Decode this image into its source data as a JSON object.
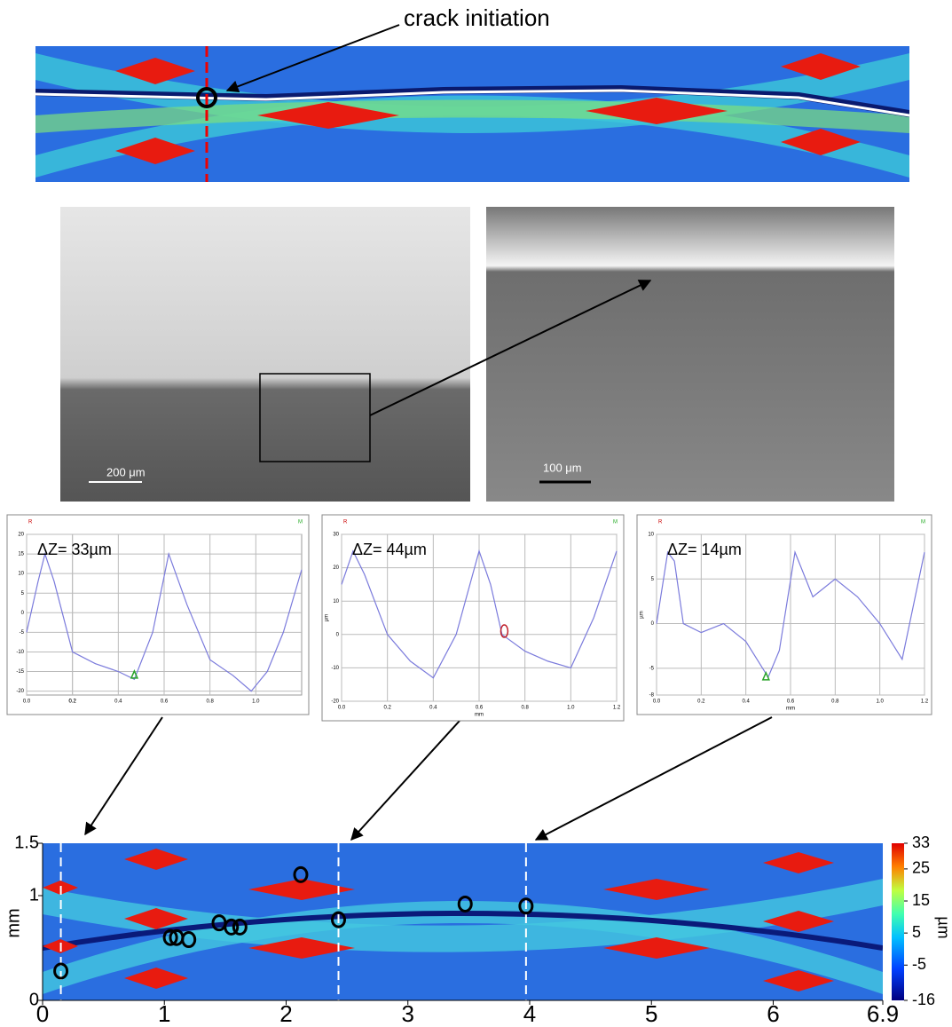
{
  "annotation": "crack initiation",
  "scale_bars": [
    "200 μm",
    "100 μm"
  ],
  "chart_data": [
    {
      "type": "line",
      "title": "ΔZ= 33µm",
      "corner_labels": [
        "R",
        "M"
      ],
      "x": [
        0,
        0.05,
        0.08,
        0.12,
        0.2,
        0.3,
        0.4,
        0.47,
        0.55,
        0.62,
        0.7,
        0.8,
        0.9,
        0.98,
        1.05,
        1.12,
        1.2
      ],
      "values": [
        -5,
        8,
        15,
        8,
        -10,
        -13,
        -15,
        -17,
        -5,
        15,
        2,
        -12,
        -16,
        -20,
        -15,
        -5,
        11
      ],
      "color": "#7b7bdc",
      "cursor": [
        0.47,
        -16
      ],
      "cursor_color": "#2aa52a",
      "xlim": [
        0,
        1.2
      ],
      "ylim": [
        -21,
        20
      ],
      "xticks": [
        {
          "value": 0,
          "label": "0.0"
        },
        0.2,
        0.4,
        0.6,
        0.8,
        {
          "value": 1,
          "label": "1.0"
        },
        0.2
      ],
      "yticks": [
        -20,
        -15,
        -10,
        -5,
        0,
        5,
        10,
        15,
        20
      ],
      "grid": true
    },
    {
      "type": "line",
      "title": "ΔZ= 44µm",
      "corner_labels": [
        "R",
        "M"
      ],
      "xlabel": "mm",
      "ylabel": "µm",
      "x": [
        0,
        0.05,
        0.1,
        0.2,
        0.3,
        0.4,
        0.5,
        0.6,
        0.65,
        0.7,
        0.8,
        0.9,
        1.0,
        1.1,
        1.2
      ],
      "values": [
        15,
        25,
        18,
        0,
        -8,
        -13,
        0,
        25,
        15,
        0,
        -5,
        -8,
        -10,
        5,
        25
      ],
      "color": "#7b7bdc",
      "cursor": [
        0.71,
        1
      ],
      "cursor_color": "#c0202a",
      "xlim": [
        0,
        1.2
      ],
      "ylim": [
        -20,
        30
      ],
      "xticks": [
        {
          "value": 0,
          "label": "0.0"
        },
        0.2,
        0.4,
        0.6,
        0.8,
        {
          "value": 1,
          "label": "1.0"
        },
        1.2
      ],
      "yticks": [
        -20,
        -10,
        0,
        10,
        20,
        30
      ],
      "grid": true
    },
    {
      "type": "line",
      "title": "ΔZ= 14µm",
      "corner_labels": [
        "R",
        "M"
      ],
      "xlabel": "mm",
      "ylabel": "µm",
      "x": [
        0,
        0.05,
        0.08,
        0.12,
        0.2,
        0.3,
        0.4,
        0.5,
        0.55,
        0.62,
        0.7,
        0.8,
        0.9,
        1.0,
        1.1,
        1.2
      ],
      "values": [
        0,
        8,
        7,
        0,
        -1,
        0,
        -2,
        -6,
        -3,
        8,
        3,
        5,
        3,
        0,
        -4,
        8
      ],
      "color": "#7b7bdc",
      "cursor": [
        0.49,
        -6
      ],
      "cursor_color": "#2aa52a",
      "xlim": [
        0,
        1.2
      ],
      "ylim": [
        -8,
        10
      ],
      "xticks": [
        {
          "value": 0,
          "label": "0.0"
        },
        0.2,
        0.4,
        0.6,
        0.8,
        {
          "value": 1,
          "label": "1.0"
        },
        1.2
      ],
      "yticks": [
        -8,
        -5,
        0,
        5,
        10
      ],
      "grid": true
    },
    {
      "type": "scatter",
      "ylabel": "mm",
      "colorbar_label": "µm",
      "x": [
        0.15,
        1.05,
        1.1,
        1.2,
        1.45,
        1.55,
        1.62,
        2.12,
        2.43,
        3.47,
        3.97
      ],
      "values": [
        0.28,
        0.6,
        0.6,
        0.58,
        0.74,
        0.7,
        0.7,
        1.2,
        0.77,
        0.92,
        0.9
      ],
      "color": "#000000",
      "dashed_lines_x": [
        0.15,
        2.43,
        3.97
      ],
      "xlim": [
        0,
        6.9
      ],
      "ylim": [
        0,
        1.5
      ],
      "xticks": [
        0,
        1,
        2,
        3,
        4,
        5,
        6,
        6.9
      ],
      "yticks": [
        0,
        1,
        1.5
      ],
      "colorbar_ticks": [
        33,
        25,
        15,
        5,
        -5,
        -16
      ],
      "colorbar_lim": [
        -16,
        33
      ]
    }
  ]
}
